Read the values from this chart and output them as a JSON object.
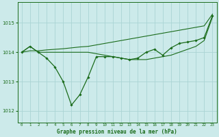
{
  "title": "Graphe pression niveau de la mer (hPa)",
  "background_color": "#cceaea",
  "grid_color": "#aad4d4",
  "line_color": "#1a6b1a",
  "x_labels": [
    "0",
    "1",
    "2",
    "3",
    "4",
    "5",
    "6",
    "7",
    "8",
    "9",
    "10",
    "11",
    "12",
    "13",
    "14",
    "15",
    "16",
    "17",
    "18",
    "19",
    "20",
    "21",
    "22",
    "23"
  ],
  "ylim": [
    1011.6,
    1015.7
  ],
  "yticks": [
    1012,
    1013,
    1014,
    1015
  ],
  "line1": [
    1014.0,
    1014.2,
    1014.0,
    1013.8,
    1013.5,
    1013.0,
    1012.2,
    1012.55,
    1013.15,
    1013.85,
    1013.85,
    1013.85,
    1013.8,
    1013.75,
    1013.8,
    1014.0,
    1014.1,
    1013.9,
    1014.15,
    1014.3,
    1014.35,
    1014.4,
    1014.5,
    1015.25
  ],
  "line2": [
    1014.0,
    1014.05,
    1014.05,
    1014.08,
    1014.1,
    1014.12,
    1014.15,
    1014.18,
    1014.2,
    1014.25,
    1014.3,
    1014.35,
    1014.4,
    1014.45,
    1014.5,
    1014.55,
    1014.6,
    1014.65,
    1014.7,
    1014.75,
    1014.8,
    1014.85,
    1014.9,
    1015.3
  ],
  "line3": [
    1014.0,
    1014.2,
    1014.0,
    1014.0,
    1014.0,
    1014.0,
    1014.0,
    1014.0,
    1014.0,
    1013.95,
    1013.9,
    1013.85,
    1013.8,
    1013.75,
    1013.75,
    1013.75,
    1013.8,
    1013.85,
    1013.9,
    1014.0,
    1014.1,
    1014.2,
    1014.4,
    1015.2
  ]
}
